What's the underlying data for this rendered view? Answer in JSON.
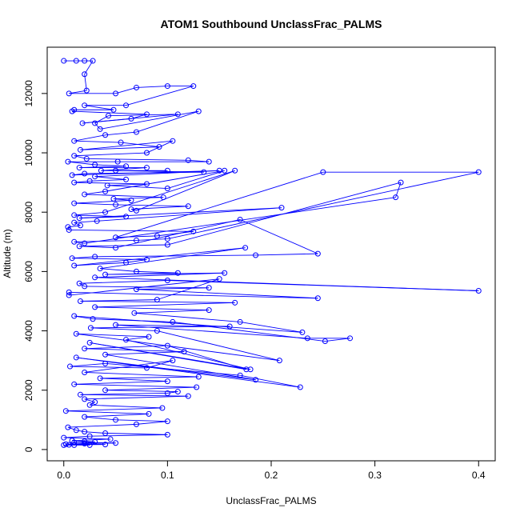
{
  "chart_data": {
    "type": "line",
    "title": "ATOM1 Southbound UnclassFrac_PALMS",
    "xlabel": "UnclassFrac_PALMS",
    "ylabel": "Altitude (m)",
    "xlim": [
      -0.016,
      0.416
    ],
    "ylim": [
      -380,
      13560
    ],
    "x_ticks": [
      0.0,
      0.1,
      0.2,
      0.3,
      0.4
    ],
    "x_tick_labels": [
      "0.0",
      "0.1",
      "0.2",
      "0.3",
      "0.4"
    ],
    "y_ticks": [
      0,
      2000,
      4000,
      6000,
      8000,
      10000,
      12000
    ],
    "y_tick_labels": [
      "0",
      "2000",
      "4000",
      "6000",
      "8000",
      "10000",
      "12000"
    ],
    "grid": false,
    "legend": "none",
    "series_color": "#0000ff",
    "series": [
      {
        "marker": "open-circle",
        "x": [
          0.0,
          0.012,
          0.02,
          0.028,
          0.02,
          0.022,
          0.005,
          0.05,
          0.07,
          0.1,
          0.125,
          0.06,
          0.02,
          0.048,
          0.01,
          0.008,
          0.08,
          0.065,
          0.018,
          0.11,
          0.043,
          0.03,
          0.035,
          0.13,
          0.07,
          0.04,
          0.01,
          0.055,
          0.092,
          0.016,
          0.105,
          0.08,
          0.01,
          0.022,
          0.12,
          0.14,
          0.052,
          0.004,
          0.03,
          0.06,
          0.015,
          0.08,
          0.036,
          0.1,
          0.05,
          0.135,
          0.02,
          0.008,
          0.15,
          0.03,
          0.06,
          0.025,
          0.01,
          0.08,
          0.042,
          0.1,
          0.155,
          0.04,
          0.02,
          0.096,
          0.048,
          0.065,
          0.01,
          0.05,
          0.12,
          0.065,
          0.07,
          0.165,
          0.04,
          0.01,
          0.06,
          0.015,
          0.21,
          0.032,
          0.01,
          0.016,
          0.004,
          0.005,
          0.125,
          0.09,
          0.05,
          0.25,
          0.4,
          0.1,
          0.07,
          0.01,
          0.02,
          0.32,
          0.325,
          0.1,
          0.015,
          0.05,
          0.17,
          0.245,
          0.185,
          0.03,
          0.008,
          0.08,
          0.06,
          0.01,
          0.175,
          0.035,
          0.07,
          0.11,
          0.04,
          0.155,
          0.03,
          0.4,
          0.1,
          0.015,
          0.02,
          0.14,
          0.07,
          0.245,
          0.005,
          0.005,
          0.15,
          0.09,
          0.016,
          0.165,
          0.03,
          0.14,
          0.068,
          0.17,
          0.23,
          0.01,
          0.028,
          0.105,
          0.252,
          0.276,
          0.235,
          0.05,
          0.16,
          0.026,
          0.09,
          0.208,
          0.012,
          0.082,
          0.06,
          0.18,
          0.025,
          0.176,
          0.1,
          0.02,
          0.116,
          0.04,
          0.185,
          0.012,
          0.228,
          0.17,
          0.04,
          0.006,
          0.08,
          0.105,
          0.02,
          0.13,
          0.035,
          0.1,
          0.01,
          0.128,
          0.04,
          0.11,
          0.1,
          0.016,
          0.12,
          0.02,
          0.03,
          0.025,
          0.095,
          0.002,
          0.082,
          0.02,
          0.05,
          0.1,
          0.07,
          0.004,
          0.012,
          0.02,
          0.04,
          0.1,
          0.025,
          0.0,
          0.045,
          0.008,
          0.02,
          0.03,
          0.01,
          0.05,
          0.02,
          0.002,
          0.04,
          0.005,
          0.025,
          0.01,
          0.0
        ],
        "y": [
          13100,
          13100,
          13100,
          13100,
          12650,
          12100,
          12000,
          12000,
          12200,
          12250,
          12250,
          11600,
          11600,
          11450,
          11450,
          11400,
          11300,
          11150,
          11000,
          11300,
          11250,
          11000,
          10800,
          11400,
          10700,
          10600,
          10400,
          10350,
          10200,
          10100,
          10400,
          10000,
          9900,
          9800,
          9750,
          9700,
          9700,
          9700,
          9600,
          9550,
          9500,
          9500,
          9400,
          9400,
          9400,
          9350,
          9300,
          9250,
          9400,
          9200,
          9100,
          9050,
          9000,
          8950,
          8900,
          8800,
          9400,
          8700,
          8600,
          8500,
          8450,
          8400,
          8300,
          8250,
          8200,
          8100,
          8050,
          9400,
          8000,
          7900,
          7850,
          7800,
          8150,
          7700,
          7650,
          7550,
          7500,
          7400,
          7350,
          7200,
          7150,
          9350,
          9350,
          7100,
          7050,
          7000,
          6950,
          8500,
          9000,
          6900,
          6850,
          6800,
          7750,
          6600,
          6550,
          6500,
          6450,
          6400,
          6300,
          6200,
          6800,
          6100,
          6000,
          5950,
          5900,
          5950,
          5800,
          5350,
          5700,
          5600,
          5500,
          5450,
          5400,
          5100,
          5300,
          5200,
          5750,
          5050,
          5000,
          4950,
          4800,
          4700,
          4600,
          4300,
          3950,
          4500,
          4400,
          4300,
          3650,
          3750,
          3750,
          4200,
          4150,
          4100,
          4000,
          3000,
          3900,
          3800,
          3700,
          2700,
          3600,
          2700,
          3500,
          3400,
          3300,
          3200,
          2350,
          3100,
          2100,
          2500,
          2900,
          2800,
          2750,
          3000,
          2600,
          2450,
          2400,
          2300,
          2200,
          2100,
          2000,
          1950,
          1900,
          1850,
          1800,
          1700,
          1600,
          1500,
          1400,
          1300,
          1200,
          1100,
          1000,
          950,
          850,
          750,
          650,
          600,
          550,
          500,
          450,
          400,
          350,
          300,
          280,
          260,
          240,
          220,
          200,
          180,
          170,
          160,
          150,
          150,
          150
        ]
      }
    ]
  }
}
